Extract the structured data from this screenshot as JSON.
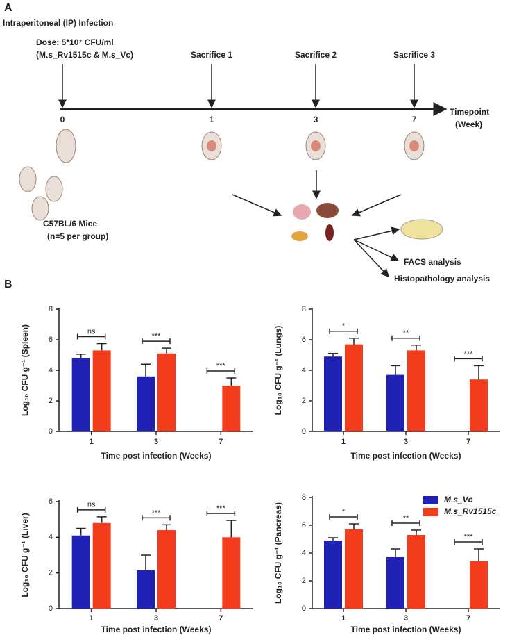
{
  "panel_labels": [
    "A",
    "B"
  ],
  "diagram": {
    "title": "Intraperitoneal (IP) Infection",
    "dose_line1": "Dose: 5*10⁷ CFU/ml",
    "dose_line2": "(M.s_Rv1515c & M.s_Vc)",
    "sacrifices": [
      "Sacrifice 1",
      "Sacrifice 2",
      "Sacrifice 3"
    ],
    "timepoints": [
      "0",
      "1",
      "3",
      "7"
    ],
    "axis_label": [
      "Timepoint",
      "(Week)"
    ],
    "mice_label": [
      "C57BL/6 Mice",
      "(n=5 per group)"
    ],
    "analyses": [
      "FACS analysis",
      "Histopathology analysis"
    ]
  },
  "chart_data": [
    {
      "type": "bar",
      "y_label": "Log₁₀ CFU g⁻¹ (Spleen)",
      "x_label": "Time post infection (Weeks)",
      "categories": [
        "1",
        "3",
        "7"
      ],
      "ylim": [
        0,
        8
      ],
      "yticks": [
        0,
        2,
        4,
        6,
        8
      ],
      "series": [
        {
          "name": "M.s_Vc",
          "color": "#1f22b4",
          "values": [
            4.8,
            3.6,
            null
          ],
          "errors": [
            0.25,
            0.8,
            null
          ]
        },
        {
          "name": "M.s_Rv1515c",
          "color": "#f23c1c",
          "values": [
            5.3,
            5.1,
            3.0
          ],
          "errors": [
            0.45,
            0.35,
            0.5
          ]
        }
      ],
      "annotations": [
        "ns",
        "***",
        "***"
      ]
    },
    {
      "type": "bar",
      "y_label": "Log₁₀ CFU g⁻¹ (Lungs)",
      "x_label": "Time post infection (Weeks)",
      "categories": [
        "1",
        "3",
        "7"
      ],
      "ylim": [
        0,
        8
      ],
      "yticks": [
        0,
        2,
        4,
        6,
        8
      ],
      "series": [
        {
          "name": "M.s_Vc",
          "color": "#1f22b4",
          "values": [
            4.9,
            3.7,
            null
          ],
          "errors": [
            0.2,
            0.6,
            null
          ]
        },
        {
          "name": "M.s_Rv1515c",
          "color": "#f23c1c",
          "values": [
            5.7,
            5.3,
            3.4
          ],
          "errors": [
            0.4,
            0.35,
            0.9
          ]
        }
      ],
      "annotations": [
        "*",
        "**",
        "***"
      ]
    },
    {
      "type": "bar",
      "y_label": "Log₁₀ CFU g⁻¹ (Liver)",
      "x_label": "Time post infection (Weeks)",
      "categories": [
        "1",
        "3",
        "7"
      ],
      "ylim": [
        0,
        6
      ],
      "yticks": [
        0,
        2,
        4,
        6
      ],
      "series": [
        {
          "name": "M.s_Vc",
          "color": "#1f22b4",
          "values": [
            4.1,
            2.15,
            null
          ],
          "errors": [
            0.4,
            0.85,
            null
          ]
        },
        {
          "name": "M.s_Rv1515c",
          "color": "#f23c1c",
          "values": [
            4.8,
            4.4,
            4.0
          ],
          "errors": [
            0.35,
            0.3,
            0.95
          ]
        }
      ],
      "annotations": [
        "ns",
        "***",
        "***"
      ]
    },
    {
      "type": "bar",
      "y_label": "Log₁₀ CFU g⁻¹ (Pancreas)",
      "x_label": "Time post infection (Weeks)",
      "categories": [
        "1",
        "3",
        "7"
      ],
      "ylim": [
        0,
        8
      ],
      "yticks": [
        0,
        2,
        4,
        6,
        8
      ],
      "legend": "top-right",
      "series": [
        {
          "name": "M.s_Vc",
          "color": "#1f22b4",
          "values": [
            4.9,
            3.7,
            null
          ],
          "errors": [
            0.2,
            0.6,
            null
          ]
        },
        {
          "name": "M.s_Rv1515c",
          "color": "#f23c1c",
          "values": [
            5.7,
            5.3,
            3.4
          ],
          "errors": [
            0.4,
            0.35,
            0.9
          ]
        }
      ],
      "annotations": [
        "*",
        "**",
        "***"
      ]
    }
  ]
}
